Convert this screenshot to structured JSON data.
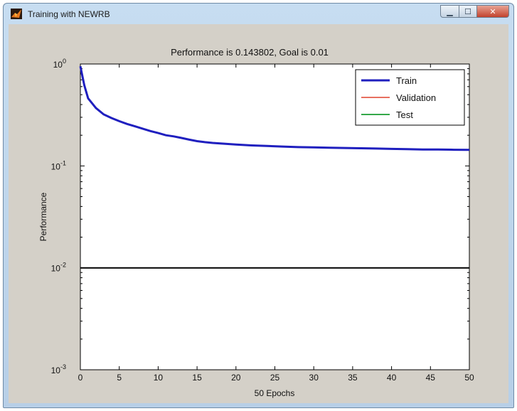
{
  "window": {
    "title": "Training with NEWRB",
    "controls": {
      "minimize_icon": "minimize-icon",
      "maximize_icon": "maximize-icon",
      "close_icon": "close-icon"
    }
  },
  "chart_data": {
    "type": "line",
    "title": "Performance is 0.143802, Goal is 0.01",
    "xlabel": "50 Epochs",
    "ylabel": "Performance",
    "yscale": "log",
    "xlim": [
      0,
      50
    ],
    "ylim": [
      0.001,
      1
    ],
    "x_ticks": [
      "0",
      "5",
      "10",
      "15",
      "20",
      "25",
      "30",
      "35",
      "40",
      "45",
      "50"
    ],
    "y_ticks": [
      {
        "base": "10",
        "exp": "0"
      },
      {
        "base": "10",
        "exp": "-1"
      },
      {
        "base": "10",
        "exp": "-2"
      },
      {
        "base": "10",
        "exp": "-3"
      }
    ],
    "legend": {
      "position": "top-right",
      "entries": [
        "Train",
        "Validation",
        "Test"
      ]
    },
    "colors": {
      "Train": "#1f1fbf",
      "Validation": "#e0412b",
      "Test": "#35a84a",
      "Goal": "#000000"
    },
    "series": [
      {
        "name": "Train",
        "x": [
          0,
          0.5,
          1,
          2,
          3,
          4,
          5,
          6,
          7,
          8,
          9,
          10,
          11,
          12,
          13,
          14,
          15,
          16,
          17,
          18,
          19,
          20,
          22,
          24,
          26,
          28,
          30,
          32,
          34,
          36,
          38,
          40,
          42,
          44,
          46,
          48,
          50
        ],
        "y": [
          0.95,
          0.62,
          0.46,
          0.37,
          0.32,
          0.295,
          0.275,
          0.258,
          0.245,
          0.232,
          0.22,
          0.21,
          0.2,
          0.195,
          0.188,
          0.181,
          0.175,
          0.171,
          0.168,
          0.166,
          0.164,
          0.162,
          0.159,
          0.157,
          0.155,
          0.153,
          0.152,
          0.151,
          0.15,
          0.149,
          0.148,
          0.147,
          0.146,
          0.145,
          0.145,
          0.144,
          0.143802
        ]
      },
      {
        "name": "Goal",
        "x": [
          0,
          50
        ],
        "y": [
          0.01,
          0.01
        ]
      }
    ]
  }
}
